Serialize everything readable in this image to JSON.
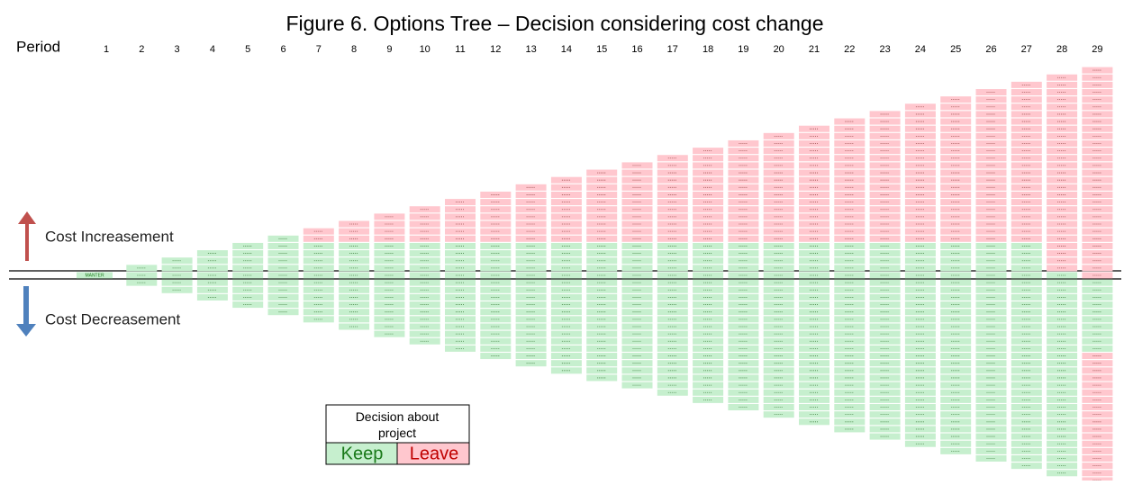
{
  "title": "Figure 6. Options Tree – Decision considering cost change",
  "period_label": "Period",
  "periods": [
    1,
    2,
    3,
    4,
    5,
    6,
    7,
    8,
    9,
    10,
    11,
    12,
    13,
    14,
    15,
    16,
    17,
    18,
    19,
    20,
    21,
    22,
    23,
    24,
    25,
    26,
    27,
    28,
    29
  ],
  "root_label": "MANTER",
  "leave_top_counts": [
    0,
    0,
    0,
    0,
    0,
    0,
    2,
    3,
    4,
    5,
    6,
    7,
    8,
    9,
    10,
    11,
    12,
    13,
    14,
    15,
    16,
    17,
    18,
    19,
    20,
    21,
    22,
    27,
    29
  ],
  "leave_bottom_counts": [
    0,
    0,
    0,
    0,
    0,
    0,
    0,
    0,
    0,
    0,
    0,
    0,
    0,
    0,
    0,
    0,
    0,
    0,
    0,
    0,
    0,
    0,
    0,
    0,
    0,
    0,
    0,
    0,
    18
  ],
  "up_label": "Cost Increasement",
  "down_label": "Cost Decreasement",
  "legend": {
    "title": "Decision about project",
    "keep": "Keep",
    "leave": "Leave",
    "keep_color": "#c6efce",
    "leave_color": "#ffc7ce"
  }
}
